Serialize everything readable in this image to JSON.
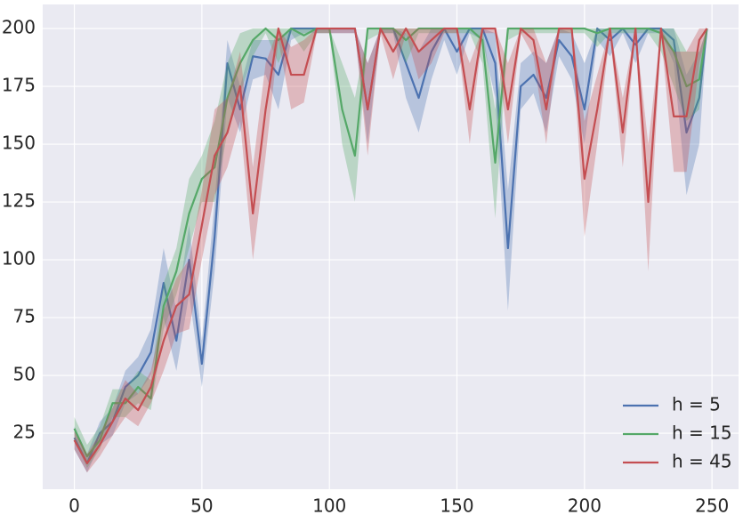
{
  "chart_data": {
    "type": "line",
    "x": [
      0,
      5,
      10,
      15,
      20,
      25,
      30,
      35,
      40,
      45,
      50,
      55,
      60,
      65,
      70,
      75,
      80,
      85,
      90,
      95,
      100,
      105,
      110,
      115,
      120,
      125,
      130,
      135,
      140,
      145,
      150,
      155,
      160,
      165,
      170,
      175,
      180,
      185,
      190,
      195,
      200,
      205,
      210,
      215,
      220,
      225,
      230,
      235,
      240,
      245,
      248
    ],
    "xlim": [
      -12.4,
      260.4
    ],
    "ylim": [
      0.8,
      210.4
    ],
    "xticks": [
      0,
      50,
      100,
      150,
      200,
      250
    ],
    "yticks": [
      25,
      50,
      75,
      100,
      125,
      150,
      175,
      200
    ],
    "grid": true,
    "legend": "lower right",
    "series": [
      {
        "name": "h = 5",
        "color": "#4c72b0",
        "values": [
          23,
          12,
          25,
          30,
          45,
          50,
          60,
          90,
          65,
          100,
          55,
          110,
          185,
          165,
          188,
          187,
          180,
          200,
          200,
          200,
          200,
          200,
          200,
          165,
          200,
          200,
          185,
          170,
          190,
          200,
          190,
          200,
          200,
          185,
          105,
          175,
          180,
          170,
          195,
          188,
          165,
          200,
          195,
          200,
          193,
          200,
          200,
          195,
          155,
          170,
          200
        ],
        "lower": [
          18,
          8,
          20,
          24,
          38,
          42,
          50,
          75,
          52,
          85,
          45,
          95,
          170,
          155,
          178,
          180,
          165,
          195,
          198,
          198,
          198,
          198,
          198,
          150,
          198,
          198,
          170,
          155,
          178,
          195,
          180,
          198,
          195,
          170,
          78,
          165,
          172,
          155,
          188,
          178,
          150,
          195,
          188,
          198,
          185,
          198,
          198,
          185,
          128,
          150,
          198
        ],
        "upper": [
          28,
          16,
          30,
          36,
          52,
          58,
          70,
          105,
          78,
          115,
          65,
          125,
          195,
          175,
          195,
          195,
          195,
          200,
          200,
          200,
          200,
          200,
          200,
          185,
          200,
          200,
          198,
          190,
          200,
          200,
          200,
          200,
          200,
          198,
          130,
          185,
          190,
          185,
          200,
          198,
          185,
          200,
          200,
          200,
          200,
          200,
          200,
          200,
          180,
          190,
          200
        ]
      },
      {
        "name": "h = 15",
        "color": "#55a868",
        "values": [
          27,
          15,
          22,
          38,
          38,
          45,
          40,
          80,
          95,
          120,
          135,
          140,
          170,
          185,
          195,
          200,
          195,
          200,
          197,
          200,
          200,
          165,
          145,
          200,
          200,
          200,
          195,
          200,
          200,
          200,
          200,
          200,
          195,
          142,
          200,
          200,
          200,
          200,
          200,
          200,
          200,
          198,
          200,
          200,
          200,
          200,
          198,
          190,
          175,
          178,
          200
        ],
        "lower": [
          22,
          10,
          18,
          32,
          32,
          38,
          35,
          70,
          85,
          105,
          125,
          125,
          155,
          172,
          188,
          198,
          185,
          198,
          190,
          198,
          198,
          150,
          125,
          195,
          198,
          198,
          185,
          198,
          198,
          198,
          198,
          198,
          185,
          118,
          195,
          198,
          198,
          198,
          198,
          198,
          198,
          192,
          198,
          198,
          198,
          198,
          190,
          175,
          160,
          165,
          198
        ],
        "upper": [
          32,
          20,
          28,
          44,
          44,
          52,
          48,
          90,
          105,
          135,
          145,
          160,
          185,
          198,
          200,
          200,
          200,
          200,
          200,
          200,
          200,
          185,
          170,
          200,
          200,
          200,
          200,
          200,
          200,
          200,
          200,
          200,
          200,
          165,
          200,
          200,
          200,
          200,
          200,
          200,
          200,
          200,
          200,
          200,
          200,
          200,
          200,
          200,
          190,
          190,
          200
        ]
      },
      {
        "name": "h = 45",
        "color": "#c44e52",
        "values": [
          22,
          12,
          20,
          30,
          40,
          35,
          45,
          65,
          80,
          85,
          115,
          145,
          155,
          175,
          120,
          165,
          200,
          180,
          180,
          200,
          200,
          200,
          200,
          165,
          200,
          190,
          200,
          190,
          195,
          200,
          200,
          165,
          200,
          200,
          165,
          200,
          195,
          165,
          200,
          200,
          135,
          165,
          200,
          155,
          200,
          125,
          200,
          162,
          162,
          195,
          200
        ],
        "lower": [
          18,
          8,
          15,
          24,
          32,
          28,
          38,
          52,
          68,
          70,
          100,
          128,
          140,
          160,
          100,
          145,
          195,
          165,
          168,
          198,
          198,
          198,
          198,
          145,
          198,
          178,
          198,
          178,
          185,
          198,
          198,
          150,
          198,
          198,
          150,
          198,
          188,
          150,
          198,
          198,
          110,
          150,
          198,
          140,
          198,
          95,
          198,
          138,
          138,
          185,
          198
        ],
        "upper": [
          26,
          16,
          25,
          36,
          48,
          42,
          52,
          78,
          92,
          100,
          130,
          165,
          170,
          190,
          140,
          185,
          200,
          192,
          195,
          200,
          200,
          200,
          200,
          185,
          200,
          200,
          200,
          200,
          200,
          200,
          200,
          185,
          200,
          200,
          185,
          200,
          200,
          185,
          200,
          200,
          160,
          180,
          200,
          170,
          200,
          150,
          200,
          190,
          190,
          200,
          200
        ]
      }
    ]
  }
}
